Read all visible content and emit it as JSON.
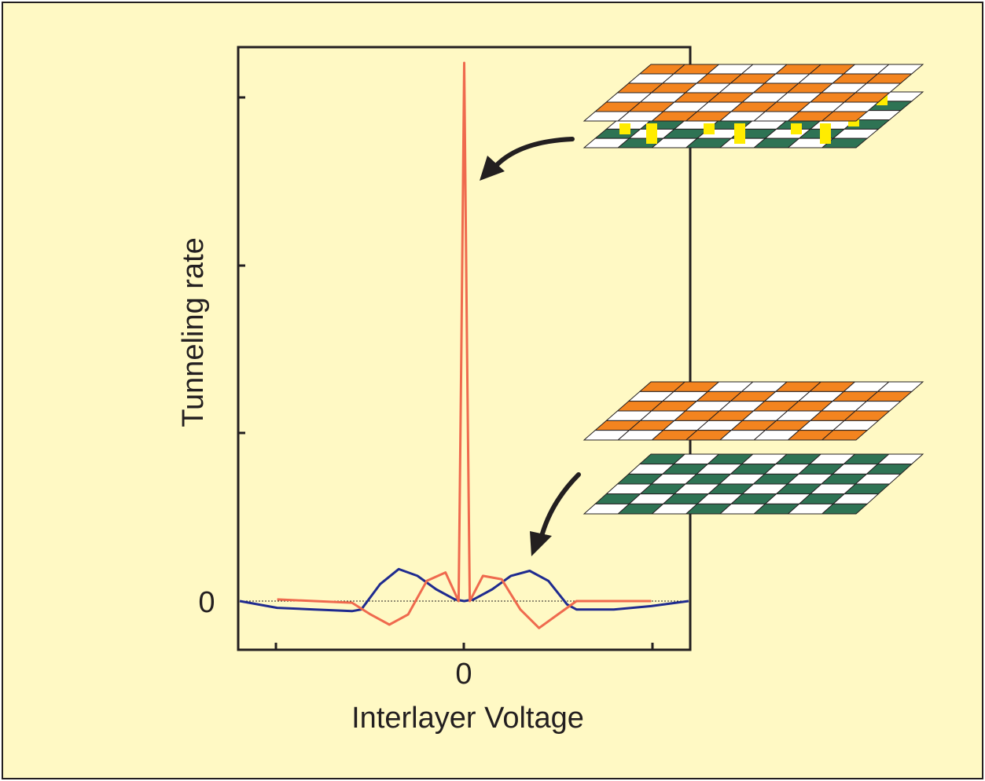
{
  "chart_data": {
    "type": "line",
    "xlabel": "Interlayer Voltage",
    "ylabel": "Tunneling rate",
    "x_tick_labels": [
      "0"
    ],
    "y_tick_labels": [
      "0"
    ],
    "xlim": [
      -1.2,
      1.2
    ],
    "ylim": [
      -0.16,
      3.2
    ],
    "zero_line": "dotted",
    "series": [
      {
        "color": "#1f2b8f",
        "x": [
          -1.2,
          -1.0,
          -0.8,
          -0.6,
          -0.55,
          -0.45,
          -0.35,
          -0.25,
          -0.15,
          -0.05,
          0.0,
          0.05,
          0.15,
          0.25,
          0.35,
          0.45,
          0.55,
          0.6,
          0.8,
          1.0,
          1.2
        ],
        "values": [
          0.0,
          -0.04,
          -0.05,
          -0.06,
          -0.05,
          0.1,
          0.19,
          0.15,
          0.07,
          0.01,
          0.0,
          0.01,
          0.07,
          0.15,
          0.18,
          0.12,
          -0.02,
          -0.05,
          -0.05,
          -0.03,
          0.0
        ]
      },
      {
        "color": "#ef6a4e",
        "x": [
          -1.0,
          -0.8,
          -0.6,
          -0.5,
          -0.4,
          -0.3,
          -0.2,
          -0.1,
          -0.03,
          -0.015,
          0.0,
          0.015,
          0.03,
          0.1,
          0.2,
          0.3,
          0.4,
          0.5,
          0.6,
          0.8,
          1.0
        ],
        "values": [
          0.01,
          0.0,
          -0.01,
          -0.08,
          -0.14,
          -0.08,
          0.12,
          0.17,
          0.0,
          1.5,
          3.2,
          1.5,
          0.0,
          0.15,
          0.13,
          -0.05,
          -0.16,
          -0.08,
          0.0,
          0.0,
          0.0
        ]
      }
    ]
  },
  "colors": {
    "background": "#fff9c4",
    "frame": "#231f20",
    "blue_curve": "#1f2b8f",
    "red_curve": "#ef6a4e",
    "orange_tile": "#f3841f",
    "green_tile": "#2e7354",
    "yellow_pillar": "#ffec00",
    "arrow": "#231f20"
  },
  "illustrations": [
    {
      "name": "coupled-bilayer-lattice-icon"
    },
    {
      "name": "separated-bilayer-lattice-icon"
    }
  ]
}
